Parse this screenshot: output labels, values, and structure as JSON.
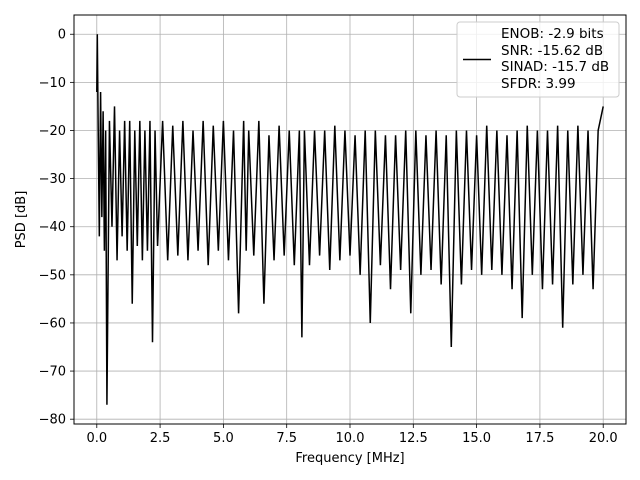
{
  "chart_data": {
    "type": "line",
    "xlabel": "Frequency [MHz]",
    "ylabel": "PSD [dB]",
    "xlim": [
      -0.9,
      20.9
    ],
    "ylim": [
      -81,
      4
    ],
    "grid": true,
    "legend_position": "top-right",
    "x_ticks": [
      0.0,
      2.5,
      5.0,
      7.5,
      10.0,
      12.5,
      15.0,
      17.5,
      20.0
    ],
    "x_tick_labels": [
      "0.0",
      "2.5",
      "5.0",
      "7.5",
      "10.0",
      "12.5",
      "15.0",
      "17.5",
      "20.0"
    ],
    "y_ticks": [
      0,
      -10,
      -20,
      -30,
      -40,
      -50,
      -60,
      -70,
      -80
    ],
    "y_tick_labels": [
      "0",
      "−10",
      "−20",
      "−30",
      "−40",
      "−50",
      "−60",
      "−70",
      "−80"
    ],
    "series": [
      {
        "legend_lines": [
          "ENOB: -2.9 bits",
          "SNR: -15.62 dB",
          "SINAD: -15.7 dB",
          "SFDR: 3.99"
        ],
        "color": "#000000",
        "x": [
          0.0,
          0.02,
          0.05,
          0.1,
          0.15,
          0.2,
          0.25,
          0.3,
          0.35,
          0.4,
          0.5,
          0.6,
          0.7,
          0.8,
          0.9,
          1.0,
          1.1,
          1.2,
          1.3,
          1.4,
          1.5,
          1.6,
          1.7,
          1.8,
          1.9,
          2.0,
          2.1,
          2.2,
          2.3,
          2.4,
          2.6,
          2.8,
          3.0,
          3.2,
          3.4,
          3.6,
          3.8,
          4.0,
          4.2,
          4.4,
          4.6,
          4.8,
          5.0,
          5.2,
          5.4,
          5.6,
          5.8,
          5.9,
          6.0,
          6.2,
          6.4,
          6.6,
          6.8,
          7.0,
          7.2,
          7.4,
          7.6,
          7.8,
          8.0,
          8.1,
          8.2,
          8.4,
          8.6,
          8.8,
          9.0,
          9.2,
          9.4,
          9.6,
          9.8,
          10.0,
          10.2,
          10.4,
          10.6,
          10.8,
          11.0,
          11.2,
          11.4,
          11.6,
          11.8,
          12.0,
          12.2,
          12.4,
          12.6,
          12.8,
          13.0,
          13.2,
          13.4,
          13.6,
          13.8,
          14.0,
          14.2,
          14.4,
          14.6,
          14.8,
          15.0,
          15.2,
          15.4,
          15.6,
          15.8,
          16.0,
          16.2,
          16.4,
          16.6,
          16.8,
          17.0,
          17.2,
          17.4,
          17.6,
          17.8,
          18.0,
          18.2,
          18.4,
          18.6,
          18.8,
          19.0,
          19.2,
          19.4,
          19.6,
          19.8,
          20.0
        ],
        "values": [
          -12,
          0,
          -17,
          -42,
          -12,
          -38,
          -16,
          -45,
          -20,
          -77,
          -18,
          -40,
          -15,
          -47,
          -20,
          -42,
          -18,
          -45,
          -18,
          -56,
          -20,
          -44,
          -18,
          -47,
          -20,
          -45,
          -18,
          -64,
          -20,
          -44,
          -18,
          -47,
          -19,
          -46,
          -18,
          -47,
          -20,
          -45,
          -18,
          -48,
          -19,
          -45,
          -18,
          -47,
          -20,
          -58,
          -18,
          -45,
          -20,
          -46,
          -18,
          -56,
          -21,
          -47,
          -19,
          -46,
          -20,
          -48,
          -20,
          -63,
          -20,
          -48,
          -20,
          -46,
          -20,
          -49,
          -19,
          -47,
          -20,
          -46,
          -21,
          -50,
          -20,
          -60,
          -20,
          -48,
          -21,
          -53,
          -21,
          -49,
          -20,
          -58,
          -20,
          -50,
          -21,
          -49,
          -20,
          -52,
          -21,
          -65,
          -20,
          -52,
          -20,
          -49,
          -21,
          -50,
          -19,
          -49,
          -20,
          -50,
          -21,
          -53,
          -20,
          -59,
          -19,
          -50,
          -20,
          -53,
          -20,
          -52,
          -19,
          -61,
          -20,
          -52,
          -19,
          -50,
          -20,
          -53,
          -20,
          -15
        ]
      }
    ]
  }
}
